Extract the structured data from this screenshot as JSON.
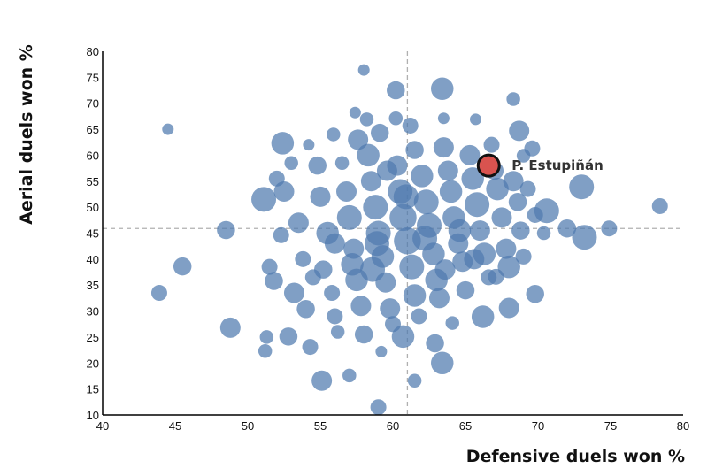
{
  "chart_data": {
    "type": "scatter",
    "title": "",
    "xlabel": "Defensive duels won %",
    "ylabel": "Aerial duels won %",
    "xlim": [
      40,
      80
    ],
    "ylim": [
      10,
      80
    ],
    "xticks": [
      "40",
      "45",
      "50",
      "55",
      "60",
      "65",
      "70",
      "75",
      "80"
    ],
    "yticks": [
      "10",
      "15",
      "20",
      "25",
      "30",
      "35",
      "40",
      "45",
      "50",
      "55",
      "60",
      "65",
      "70",
      "75",
      "80"
    ],
    "reference_lines": {
      "x_median": 61.0,
      "y_median": 45.9
    },
    "colors": {
      "points": "#4f7aae",
      "highlight": "#d9534f",
      "reference": "#b0b0b0"
    },
    "size_scale": "bubble size (relative, 1-5)",
    "highlight": {
      "label": "P. Estupiñán",
      "x": 66.6,
      "y": 58.0,
      "size": 3
    },
    "points": [
      [
        44.5,
        65.0,
        1
      ],
      [
        43.9,
        33.5,
        2
      ],
      [
        45.5,
        38.6,
        2.5
      ],
      [
        48.5,
        45.6,
        2.5
      ],
      [
        48.8,
        26.8,
        3
      ],
      [
        51.3,
        25.0,
        1.5
      ],
      [
        51.2,
        22.3,
        1.5
      ],
      [
        51.1,
        51.5,
        4
      ],
      [
        52.4,
        62.3,
        3.5
      ],
      [
        52.8,
        25.1,
        2.5
      ],
      [
        54.3,
        23.1,
        2
      ],
      [
        55.1,
        16.6,
        3
      ],
      [
        57.0,
        17.6,
        1.5
      ],
      [
        58.0,
        76.4,
        1
      ],
      [
        60.2,
        72.5,
        2.5
      ],
      [
        63.4,
        72.8,
        3.5
      ],
      [
        59.0,
        11.5,
        2
      ],
      [
        59.2,
        22.2,
        1
      ],
      [
        61.5,
        16.6,
        1.5
      ],
      [
        63.4,
        20.0,
        3.5
      ],
      [
        65.7,
        66.9,
        1
      ],
      [
        68.3,
        70.8,
        1.5
      ],
      [
        68.7,
        64.7,
        3
      ],
      [
        69.6,
        61.3,
        2
      ],
      [
        73.0,
        53.9,
        4
      ],
      [
        73.2,
        44.2,
        4
      ],
      [
        74.9,
        45.9,
        2
      ],
      [
        78.4,
        50.2,
        2
      ],
      [
        72.0,
        45.9,
        2.5
      ],
      [
        70.6,
        49.3,
        4
      ],
      [
        69.8,
        33.3,
        2.5
      ],
      [
        68.0,
        30.6,
        3
      ],
      [
        66.2,
        28.9,
        3.5
      ],
      [
        67.1,
        36.6,
        2
      ],
      [
        62.9,
        23.8,
        2.5
      ],
      [
        64.1,
        27.7,
        1.5
      ],
      [
        60.7,
        25.1,
        3.5
      ],
      [
        57.4,
        68.2,
        1
      ],
      [
        55.9,
        64.0,
        1.5
      ],
      [
        61.2,
        65.7,
        2
      ],
      [
        58.2,
        66.9,
        1.5
      ],
      [
        59.1,
        64.3,
        2.5
      ],
      [
        60.2,
        67.1,
        1.5
      ],
      [
        63.5,
        67.1,
        1
      ],
      [
        69.0,
        59.9,
        1.5
      ],
      [
        52.0,
        55.5,
        2
      ],
      [
        52.5,
        53.0,
        3
      ],
      [
        51.5,
        38.5,
        2
      ],
      [
        51.8,
        35.8,
        2.5
      ],
      [
        52.3,
        44.6,
        2
      ],
      [
        53.5,
        47.0,
        3
      ],
      [
        53.8,
        40.0,
        2
      ],
      [
        53.2,
        33.5,
        3
      ],
      [
        54.0,
        30.4,
        2.5
      ],
      [
        54.5,
        36.5,
        2
      ],
      [
        54.8,
        58.0,
        2.5
      ],
      [
        54.2,
        62.0,
        1
      ],
      [
        55.0,
        52.0,
        3
      ],
      [
        55.5,
        45.0,
        3.5
      ],
      [
        55.2,
        38.0,
        2.5
      ],
      [
        55.8,
        33.5,
        2
      ],
      [
        56.0,
        29.0,
        2
      ],
      [
        56.2,
        26.0,
        1.5
      ],
      [
        56.5,
        58.5,
        1.5
      ],
      [
        56.8,
        53.0,
        3
      ],
      [
        57.0,
        48.0,
        4
      ],
      [
        57.3,
        42.0,
        3
      ],
      [
        57.5,
        36.0,
        3.5
      ],
      [
        57.8,
        31.0,
        3
      ],
      [
        58.0,
        25.5,
        2.5
      ],
      [
        57.6,
        63.0,
        3
      ],
      [
        58.3,
        60.0,
        3.5
      ],
      [
        58.5,
        55.0,
        3
      ],
      [
        58.8,
        50.0,
        4
      ],
      [
        59.0,
        45.0,
        4
      ],
      [
        59.3,
        40.5,
        3.5
      ],
      [
        59.5,
        35.5,
        3
      ],
      [
        59.8,
        30.5,
        3
      ],
      [
        60.0,
        27.5,
        2
      ],
      [
        58.6,
        38.0,
        4
      ],
      [
        60.3,
        58.0,
        3
      ],
      [
        60.5,
        53.0,
        4
      ],
      [
        60.7,
        48.0,
        4.5
      ],
      [
        61.0,
        43.5,
        4.5
      ],
      [
        61.3,
        38.5,
        4
      ],
      [
        61.5,
        33.0,
        3.5
      ],
      [
        61.8,
        29.0,
        2
      ],
      [
        61.5,
        61.0,
        2.5
      ],
      [
        62.0,
        56.0,
        3.5
      ],
      [
        62.3,
        51.0,
        4
      ],
      [
        62.5,
        46.5,
        4
      ],
      [
        62.8,
        41.0,
        3.5
      ],
      [
        63.0,
        36.0,
        3.5
      ],
      [
        63.2,
        32.5,
        3
      ],
      [
        63.5,
        61.5,
        3
      ],
      [
        63.8,
        57.0,
        3
      ],
      [
        64.0,
        53.0,
        3.5
      ],
      [
        64.2,
        48.0,
        3.5
      ],
      [
        64.5,
        43.0,
        3
      ],
      [
        64.8,
        39.5,
        3
      ],
      [
        65.0,
        34.0,
        2.5
      ],
      [
        65.3,
        60.0,
        3
      ],
      [
        65.5,
        55.5,
        3.5
      ],
      [
        65.8,
        50.5,
        4
      ],
      [
        66.0,
        45.5,
        3
      ],
      [
        66.3,
        41.0,
        3.5
      ],
      [
        66.6,
        36.5,
        2
      ],
      [
        66.8,
        62.0,
        2
      ],
      [
        67.2,
        53.5,
        3.5
      ],
      [
        67.5,
        48.0,
        3
      ],
      [
        67.8,
        42.0,
        3
      ],
      [
        68.0,
        38.5,
        3.5
      ],
      [
        68.3,
        55.0,
        3
      ],
      [
        68.6,
        51.0,
        2.5
      ],
      [
        68.8,
        45.5,
        2.5
      ],
      [
        69.0,
        40.5,
        2
      ],
      [
        69.3,
        53.5,
        2
      ],
      [
        69.8,
        48.5,
        2
      ],
      [
        70.4,
        45.0,
        1.5
      ],
      [
        67.0,
        57.0,
        2.5
      ],
      [
        53.0,
        58.5,
        1.5
      ],
      [
        56.0,
        43.0,
        3
      ],
      [
        57.2,
        39.0,
        3.5
      ],
      [
        59.6,
        57.0,
        3
      ],
      [
        60.9,
        52.0,
        4
      ],
      [
        62.2,
        44.0,
        4
      ],
      [
        63.6,
        38.0,
        3
      ],
      [
        64.6,
        45.5,
        3.5
      ],
      [
        65.6,
        40.0,
        3
      ],
      [
        58.9,
        43.0,
        4
      ]
    ]
  }
}
